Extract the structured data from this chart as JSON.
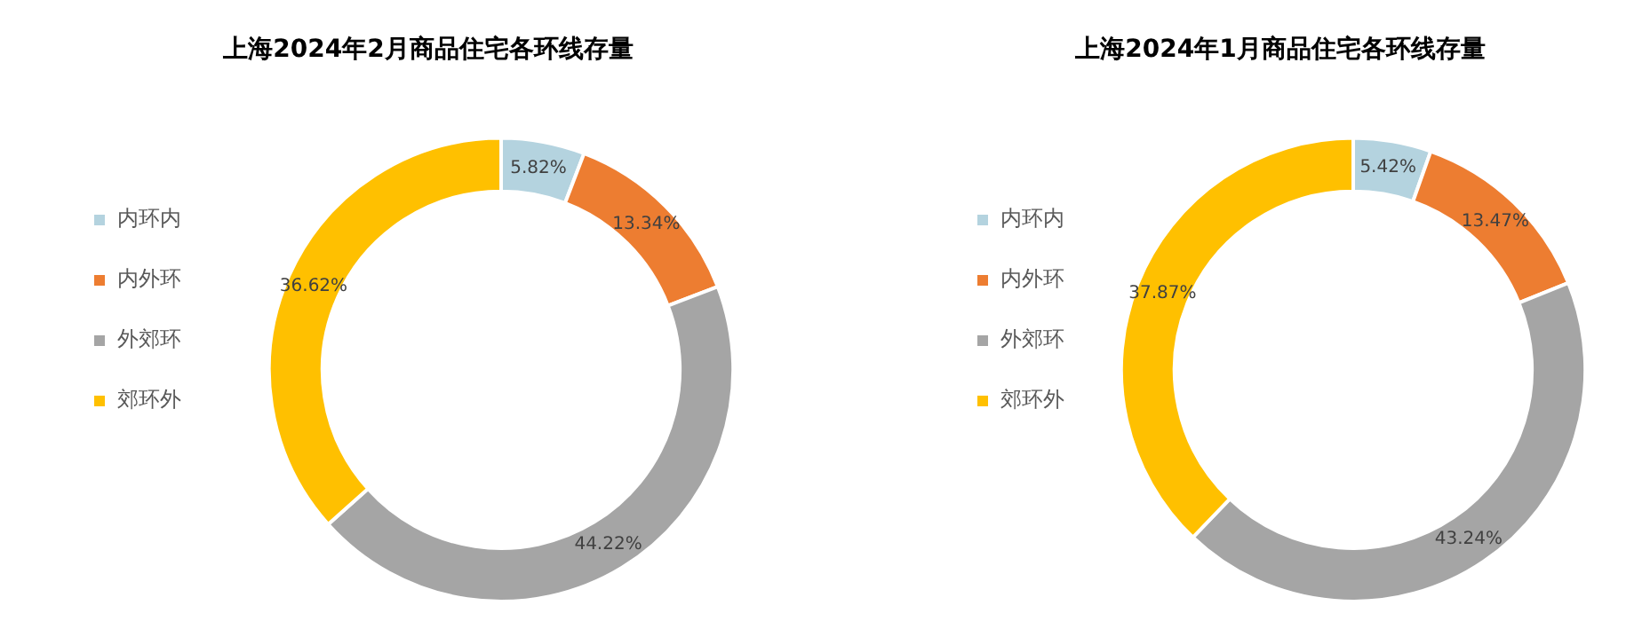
{
  "chart_data": [
    {
      "type": "donut",
      "title": "上海2024年2月商品住宅各环线存量",
      "categories": [
        "内环内",
        "内外环",
        "外郊环",
        "郊环外"
      ],
      "values": [
        5.82,
        13.34,
        44.22,
        36.62
      ],
      "colors": [
        "#b4d3df",
        "#ed7d31",
        "#a5a5a5",
        "#ffc000"
      ],
      "value_labels": [
        "5.82%",
        "13.34%",
        "44.22%",
        "36.62%"
      ],
      "legend": "left"
    },
    {
      "type": "donut",
      "title": "上海2024年1月商品住宅各环线存量",
      "categories": [
        "内环内",
        "内外环",
        "外郊环",
        "郊环外"
      ],
      "values": [
        5.42,
        13.47,
        43.24,
        37.87
      ],
      "colors": [
        "#b4d3df",
        "#ed7d31",
        "#a5a5a5",
        "#ffc000"
      ],
      "value_labels": [
        "5.42%",
        "13.47%",
        "43.24%",
        "37.87%"
      ],
      "legend": "left"
    }
  ]
}
